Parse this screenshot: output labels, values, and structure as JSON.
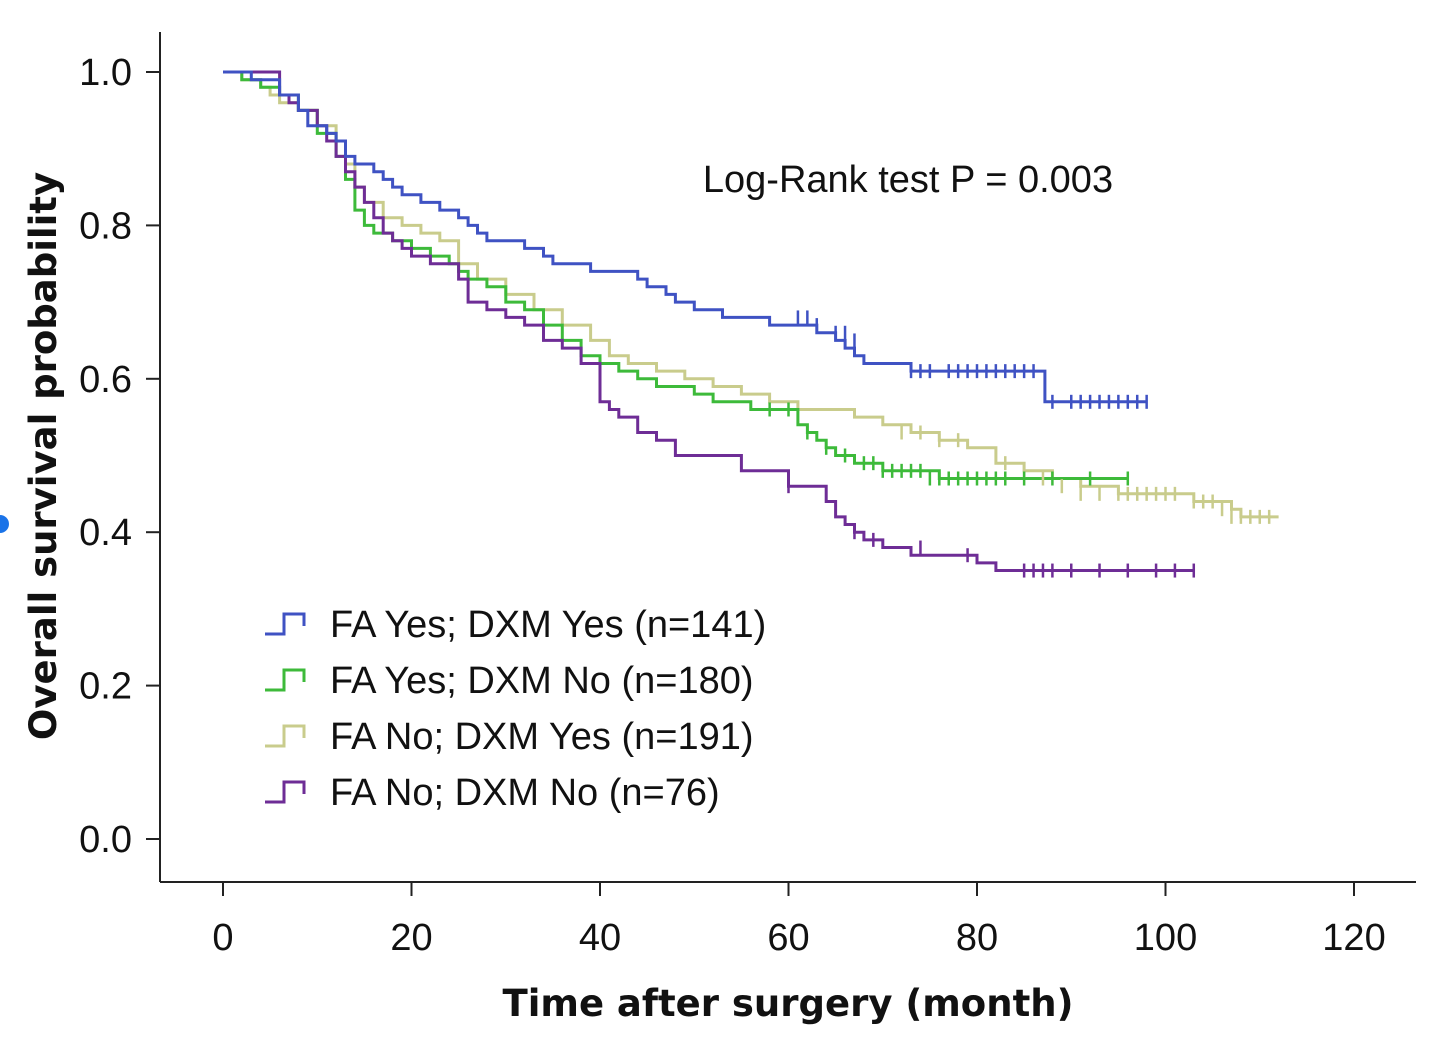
{
  "chart_data": {
    "type": "line",
    "title": "",
    "xlabel": "Time after surgery (month)",
    "ylabel": "Overall survival probability",
    "xlim": [
      0,
      120
    ],
    "ylim": [
      0.0,
      1.0
    ],
    "xticks": [
      0,
      20,
      40,
      60,
      80,
      100,
      120
    ],
    "yticks": [
      0.0,
      0.2,
      0.4,
      0.6,
      0.8,
      1.0
    ],
    "xtick_labels": [
      "0",
      "20",
      "40",
      "60",
      "80",
      "100",
      "120"
    ],
    "ytick_labels": [
      "0.0",
      "0.2",
      "0.4",
      "0.6",
      "0.8",
      "1.0"
    ],
    "grid": false,
    "legend_position": "bottom-left",
    "annotation": "Log-Rank test P = 0.003",
    "series": [
      {
        "name": "FA Yes; DXM Yes (n=141)",
        "color": "#3f52c3",
        "x": [
          0,
          3,
          6,
          8,
          9,
          11,
          12,
          13,
          14,
          16,
          17,
          18,
          19,
          20,
          21,
          23,
          25,
          26,
          27,
          28,
          30,
          32,
          34,
          35,
          37,
          39,
          41,
          44,
          45,
          47,
          48,
          50,
          52,
          53,
          56,
          58,
          61,
          63,
          65,
          66,
          67,
          68,
          70,
          73,
          76,
          80,
          84,
          87,
          87.2,
          98
        ],
        "y": [
          1.0,
          0.99,
          0.97,
          0.95,
          0.93,
          0.92,
          0.91,
          0.89,
          0.88,
          0.87,
          0.86,
          0.85,
          0.84,
          0.84,
          0.83,
          0.82,
          0.81,
          0.8,
          0.79,
          0.78,
          0.78,
          0.77,
          0.76,
          0.75,
          0.75,
          0.74,
          0.74,
          0.73,
          0.72,
          0.71,
          0.7,
          0.69,
          0.69,
          0.68,
          0.68,
          0.67,
          0.67,
          0.66,
          0.65,
          0.64,
          0.63,
          0.62,
          0.62,
          0.61,
          0.61,
          0.61,
          0.61,
          0.61,
          0.57,
          0.57
        ],
        "censor_x": [
          61,
          62,
          63,
          65,
          66,
          67,
          73,
          74,
          75,
          77,
          78,
          79,
          80,
          81,
          82,
          83,
          84,
          85,
          86,
          88,
          90,
          91,
          92,
          93,
          94,
          95,
          96,
          97,
          98
        ],
        "censor_y": [
          0.68,
          0.68,
          0.67,
          0.66,
          0.66,
          0.65,
          0.61,
          0.61,
          0.61,
          0.61,
          0.61,
          0.61,
          0.61,
          0.61,
          0.61,
          0.61,
          0.61,
          0.61,
          0.61,
          0.57,
          0.57,
          0.57,
          0.57,
          0.57,
          0.57,
          0.57,
          0.57,
          0.57,
          0.57
        ]
      },
      {
        "name": "FA Yes; DXM No (n=180)",
        "color": "#3dba3a",
        "x": [
          0,
          2,
          4,
          6,
          8,
          10,
          12,
          13,
          14,
          15,
          16,
          18,
          20,
          22,
          24,
          25,
          26,
          28,
          30,
          32,
          34,
          36,
          38,
          40,
          42,
          44,
          46,
          48,
          50,
          52,
          54,
          56,
          58,
          60,
          61,
          62,
          63,
          64,
          65,
          66,
          67,
          68,
          70,
          72,
          74,
          76,
          80,
          85,
          96
        ],
        "y": [
          1.0,
          0.99,
          0.98,
          0.97,
          0.95,
          0.92,
          0.89,
          0.86,
          0.82,
          0.8,
          0.79,
          0.78,
          0.77,
          0.76,
          0.75,
          0.74,
          0.73,
          0.72,
          0.7,
          0.69,
          0.67,
          0.65,
          0.63,
          0.62,
          0.61,
          0.6,
          0.59,
          0.59,
          0.58,
          0.57,
          0.57,
          0.56,
          0.56,
          0.56,
          0.54,
          0.53,
          0.52,
          0.51,
          0.5,
          0.5,
          0.49,
          0.49,
          0.48,
          0.48,
          0.48,
          0.47,
          0.47,
          0.47,
          0.47
        ],
        "censor_x": [
          58,
          60,
          62,
          64,
          66,
          68,
          69,
          70,
          71,
          72,
          73,
          74,
          75,
          76,
          77,
          78,
          79,
          80,
          81,
          82,
          83,
          85,
          88,
          92,
          96
        ],
        "censor_y": [
          0.56,
          0.56,
          0.53,
          0.51,
          0.5,
          0.49,
          0.49,
          0.48,
          0.48,
          0.48,
          0.48,
          0.48,
          0.47,
          0.47,
          0.47,
          0.47,
          0.47,
          0.47,
          0.47,
          0.47,
          0.47,
          0.47,
          0.47,
          0.47,
          0.47
        ]
      },
      {
        "name": "FA No; DXM Yes (n=191)",
        "color": "#c9cc8c",
        "x": [
          0,
          2,
          4,
          5,
          6,
          8,
          10,
          12,
          13,
          14,
          15,
          17,
          19,
          21,
          23,
          25,
          27,
          30,
          33,
          36,
          39,
          41,
          43,
          46,
          49,
          52,
          55,
          58,
          61,
          64,
          67,
          70,
          73,
          76,
          79,
          82,
          85,
          88,
          91,
          95,
          99,
          103,
          107,
          108,
          112
        ],
        "y": [
          1.0,
          0.99,
          0.98,
          0.97,
          0.96,
          0.95,
          0.93,
          0.91,
          0.88,
          0.85,
          0.83,
          0.81,
          0.8,
          0.79,
          0.78,
          0.75,
          0.73,
          0.71,
          0.69,
          0.67,
          0.65,
          0.63,
          0.62,
          0.61,
          0.6,
          0.59,
          0.58,
          0.57,
          0.56,
          0.56,
          0.55,
          0.54,
          0.53,
          0.52,
          0.51,
          0.49,
          0.48,
          0.47,
          0.46,
          0.45,
          0.45,
          0.44,
          0.43,
          0.42,
          0.42
        ],
        "censor_x": [
          72,
          74,
          76,
          78,
          83,
          85,
          87,
          89,
          91,
          93,
          95,
          96,
          97,
          98,
          99,
          100,
          101,
          103,
          104,
          105,
          106,
          107,
          108,
          109,
          110,
          111
        ],
        "censor_y": [
          0.53,
          0.53,
          0.52,
          0.52,
          0.49,
          0.48,
          0.47,
          0.46,
          0.45,
          0.45,
          0.45,
          0.45,
          0.45,
          0.45,
          0.45,
          0.45,
          0.45,
          0.44,
          0.44,
          0.44,
          0.43,
          0.42,
          0.42,
          0.42,
          0.42,
          0.42
        ]
      },
      {
        "name": "FA No; DXM No (n=76)",
        "color": "#6e2d96",
        "x": [
          0,
          6,
          7,
          8,
          10,
          11,
          12,
          13,
          14,
          15,
          16,
          17,
          18,
          19,
          20,
          22,
          25,
          26,
          28,
          30,
          32,
          34,
          36,
          38,
          40,
          41,
          42,
          44,
          46,
          48,
          55,
          60,
          64,
          65,
          66,
          67,
          68,
          70,
          73,
          80,
          82,
          103
        ],
        "y": [
          1.0,
          0.97,
          0.96,
          0.95,
          0.93,
          0.91,
          0.89,
          0.87,
          0.85,
          0.83,
          0.81,
          0.79,
          0.78,
          0.77,
          0.76,
          0.75,
          0.73,
          0.7,
          0.69,
          0.68,
          0.67,
          0.65,
          0.64,
          0.62,
          0.57,
          0.56,
          0.55,
          0.53,
          0.52,
          0.5,
          0.48,
          0.46,
          0.44,
          0.42,
          0.41,
          0.4,
          0.39,
          0.38,
          0.37,
          0.36,
          0.35,
          0.35
        ],
        "censor_x": [
          60,
          67,
          69,
          74,
          79,
          85,
          86,
          87,
          88,
          90,
          93,
          96,
          99,
          101,
          103
        ],
        "censor_y": [
          0.46,
          0.4,
          0.39,
          0.38,
          0.37,
          0.35,
          0.35,
          0.35,
          0.35,
          0.35,
          0.35,
          0.35,
          0.35,
          0.35,
          0.35
        ]
      }
    ]
  }
}
